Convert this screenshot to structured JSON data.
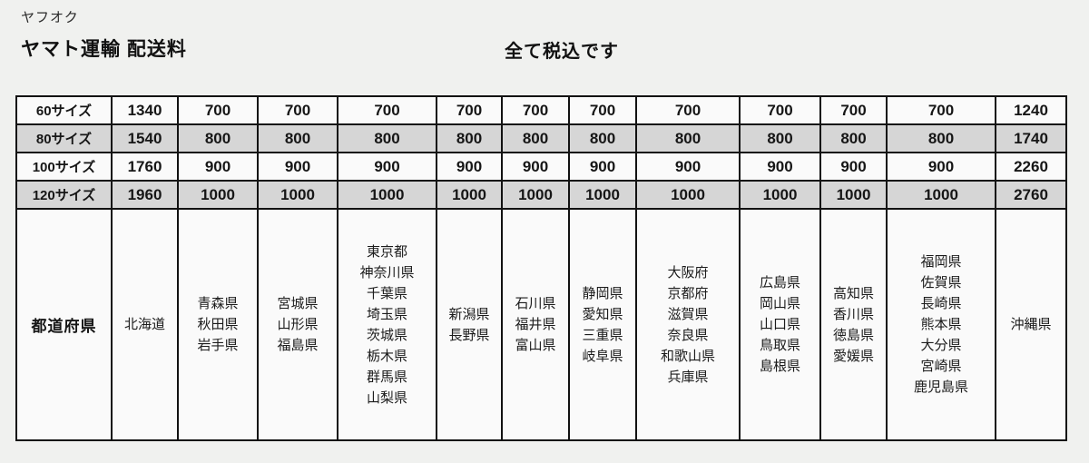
{
  "header": {
    "site_label": "ヤフオク",
    "title": "ヤマト運輸 配送料",
    "tax_note": "全て税込です"
  },
  "table": {
    "size_rows": [
      {
        "label": "60サイズ",
        "shaded": false,
        "values": [
          "1340",
          "700",
          "700",
          "700",
          "700",
          "700",
          "700",
          "700",
          "700",
          "700",
          "700",
          "1240"
        ]
      },
      {
        "label": "80サイズ",
        "shaded": true,
        "values": [
          "1540",
          "800",
          "800",
          "800",
          "800",
          "800",
          "800",
          "800",
          "800",
          "800",
          "800",
          "1740"
        ]
      },
      {
        "label": "100サイズ",
        "shaded": false,
        "values": [
          "1760",
          "900",
          "900",
          "900",
          "900",
          "900",
          "900",
          "900",
          "900",
          "900",
          "900",
          "2260"
        ]
      },
      {
        "label": "120サイズ",
        "shaded": true,
        "values": [
          "1960",
          "1000",
          "1000",
          "1000",
          "1000",
          "1000",
          "1000",
          "1000",
          "1000",
          "1000",
          "1000",
          "2760"
        ]
      }
    ],
    "prefecture_row": {
      "label": "都道府県",
      "groups": [
        [
          "北海道"
        ],
        [
          "青森県",
          "秋田県",
          "岩手県"
        ],
        [
          "宮城県",
          "山形県",
          "福島県"
        ],
        [
          "東京都",
          "神奈川県",
          "千葉県",
          "埼玉県",
          "茨城県",
          "栃木県",
          "群馬県",
          "山梨県"
        ],
        [
          "新潟県",
          "長野県"
        ],
        [
          "石川県",
          "福井県",
          "富山県"
        ],
        [
          "静岡県",
          "愛知県",
          "三重県",
          "岐阜県"
        ],
        [
          "大阪府",
          "京都府",
          "滋賀県",
          "奈良県",
          "和歌山県",
          "兵庫県"
        ],
        [
          "広島県",
          "岡山県",
          "山口県",
          "鳥取県",
          "島根県"
        ],
        [
          "高知県",
          "香川県",
          "徳島県",
          "愛媛県"
        ],
        [
          "福岡県",
          "佐賀県",
          "長崎県",
          "熊本県",
          "大分県",
          "宮崎県",
          "鹿児島県"
        ],
        [
          "沖縄県"
        ]
      ]
    },
    "colors": {
      "shaded_row_bg": "#d6d6d6",
      "cell_bg": "#fafafa",
      "border": "#121212",
      "page_bg": "#f0f1ef"
    }
  }
}
